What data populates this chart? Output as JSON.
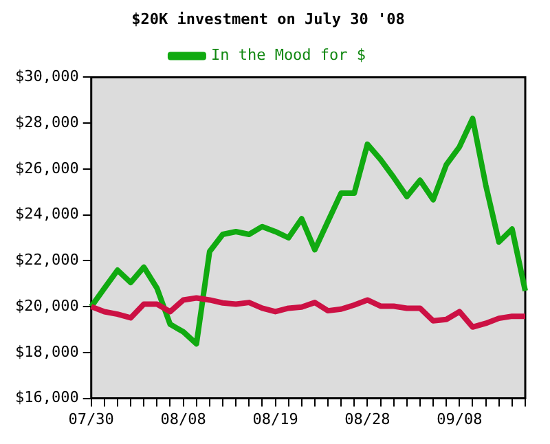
{
  "chart_data": {
    "type": "line",
    "title": "$20K investment on July 30 '08",
    "categories": [
      "07/30",
      null,
      null,
      null,
      null,
      null,
      null,
      "08/08",
      null,
      null,
      null,
      null,
      null,
      null,
      "08/19",
      null,
      null,
      null,
      null,
      null,
      null,
      "08/28",
      null,
      null,
      null,
      null,
      null,
      null,
      "09/08",
      null,
      null,
      null,
      null,
      null
    ],
    "series": [
      {
        "color": "#cc1144",
        "values": [
          20000,
          19780,
          19670,
          19510,
          20110,
          20110,
          19780,
          20290,
          20380,
          20290,
          20160,
          20110,
          20180,
          19930,
          19780,
          19930,
          19980,
          20180,
          19820,
          19890,
          20070,
          20290,
          20020,
          20020,
          19930,
          19930,
          19380,
          19440,
          19780,
          19110,
          19270,
          19490,
          19580,
          19580
        ]
      },
      {
        "name": "In the Mood for $",
        "color": "#11aa11",
        "values": [
          20000,
          20800,
          21590,
          21050,
          21720,
          20800,
          19230,
          18900,
          18380,
          22400,
          23150,
          23270,
          23150,
          23490,
          23270,
          23000,
          23830,
          22480,
          23720,
          24950,
          24950,
          27080,
          26410,
          25630,
          24800,
          25510,
          24660,
          26190,
          26970,
          28200,
          25290,
          22820,
          23380,
          20690
        ]
      }
    ],
    "ylim": [
      16000,
      30000
    ],
    "yticks": [
      {
        "value": 16000,
        "label": "$16,000"
      },
      {
        "value": 18000,
        "label": "$18,000"
      },
      {
        "value": 20000,
        "label": "$20,000"
      },
      {
        "value": 22000,
        "label": "$22,000"
      },
      {
        "value": 24000,
        "label": "$24,000"
      },
      {
        "value": 26000,
        "label": "$26,000"
      },
      {
        "value": 28000,
        "label": "$28,000"
      },
      {
        "value": 30000,
        "label": "$30,000"
      }
    ],
    "grid": false,
    "legend": "top",
    "marker": "none",
    "line_style": "solid"
  }
}
